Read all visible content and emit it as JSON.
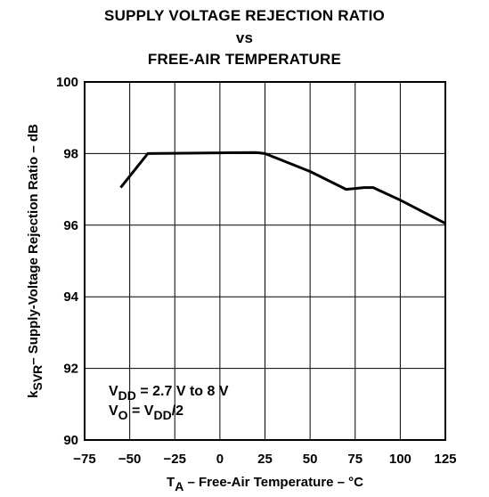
{
  "chart_data": {
    "type": "line",
    "title_lines": [
      "SUPPLY VOLTAGE REJECTION RATIO",
      "vs",
      "FREE-AIR TEMPERATURE"
    ],
    "xlabel": {
      "main": "T",
      "sub": "A",
      "rest": " – Free-Air Temperature  – °C"
    },
    "ylabel": {
      "main": "k",
      "sub": "SVR",
      "rest": "– Supply-Voltage Rejection Ratio – dB"
    },
    "xlim": [
      -75,
      125
    ],
    "ylim": [
      90,
      100
    ],
    "x_ticks": [
      -75,
      -50,
      -25,
      0,
      25,
      50,
      75,
      100,
      125
    ],
    "x_tick_labels": [
      "−75",
      "−50",
      "−25",
      "0",
      "25",
      "50",
      "75",
      "100",
      "125"
    ],
    "y_ticks": [
      90,
      92,
      94,
      96,
      98,
      100
    ],
    "y_tick_labels": [
      "90",
      "92",
      "94",
      "96",
      "98",
      "100"
    ],
    "grid": true,
    "series": [
      {
        "x": [
          -55,
          -40,
          0,
          20,
          25,
          50,
          70,
          80,
          85,
          100,
          125
        ],
        "y": [
          97.05,
          98.0,
          98.02,
          98.03,
          98.0,
          97.5,
          97.0,
          97.05,
          97.05,
          96.7,
          96.05
        ]
      }
    ],
    "annotations": [
      {
        "parts": [
          [
            "V",
            ""
          ],
          [
            "DD",
            "sub"
          ],
          [
            " = 2.7 V to 8 V",
            ""
          ]
        ]
      },
      {
        "parts": [
          [
            "V",
            ""
          ],
          [
            "O",
            "sub"
          ],
          [
            " = V",
            ""
          ],
          [
            "DD",
            "sub"
          ],
          [
            "/2",
            ""
          ]
        ]
      }
    ]
  }
}
